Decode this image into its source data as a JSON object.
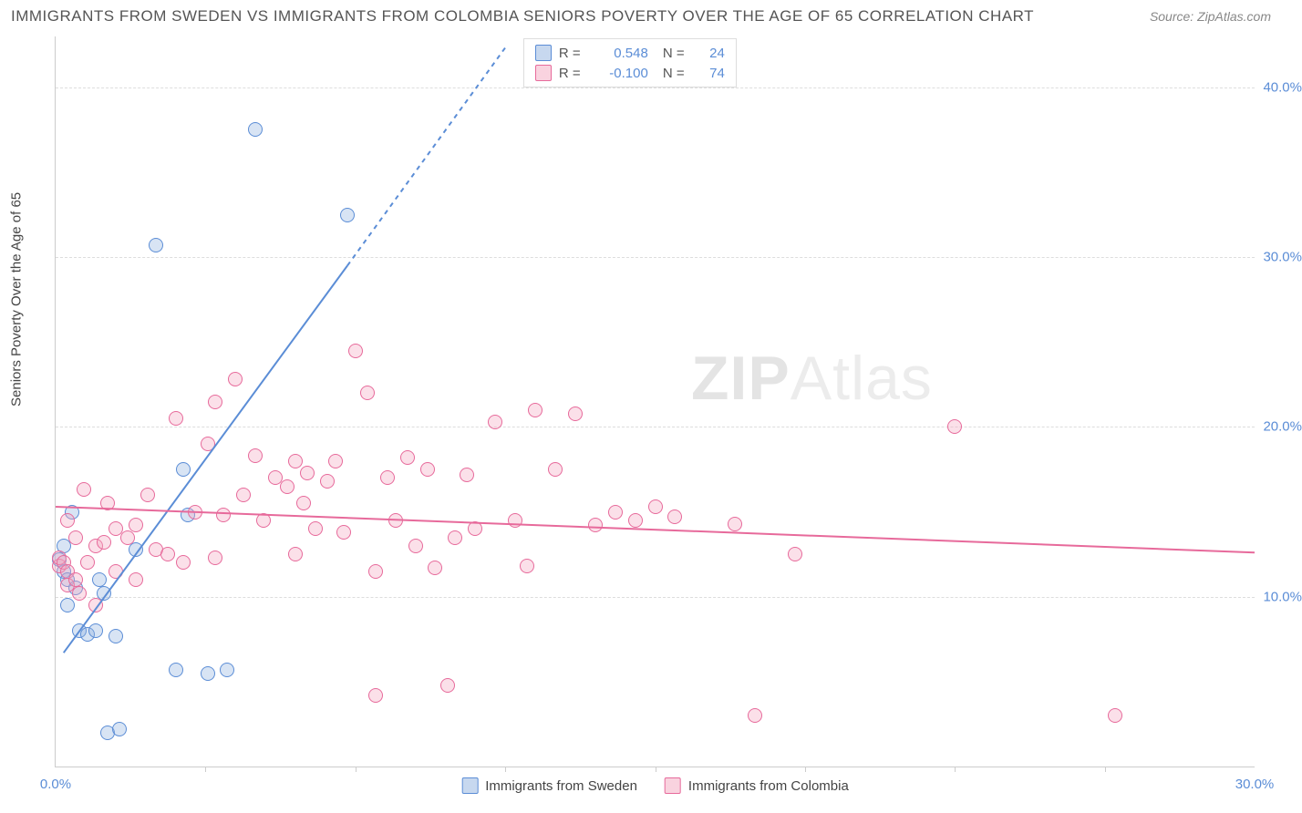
{
  "title": "IMMIGRANTS FROM SWEDEN VS IMMIGRANTS FROM COLOMBIA SENIORS POVERTY OVER THE AGE OF 65 CORRELATION CHART",
  "source": "Source: ZipAtlas.com",
  "y_axis_label": "Seniors Poverty Over the Age of 65",
  "watermark_prefix": "ZIP",
  "watermark_suffix": "Atlas",
  "chart": {
    "type": "scatter",
    "xlim": [
      0,
      30
    ],
    "ylim": [
      0,
      43
    ],
    "x_ticks": [
      0,
      30
    ],
    "x_tick_labels": [
      "0.0%",
      "30.0%"
    ],
    "x_minor_ticks": [
      3.75,
      7.5,
      11.25,
      15,
      18.75,
      22.5,
      26.25
    ],
    "y_ticks": [
      10,
      20,
      30,
      40
    ],
    "y_tick_labels": [
      "10.0%",
      "20.0%",
      "30.0%",
      "40.0%"
    ],
    "grid_color": "#dddddd",
    "background_color": "#ffffff",
    "marker_radius": 8
  },
  "series": [
    {
      "name": "Immigrants from Sweden",
      "color": "#5b8dd6",
      "fill": "rgba(144,178,224,0.35)",
      "R": "0.548",
      "N": "24",
      "trend": {
        "x1": 0.2,
        "y1": 6.7,
        "x2": 7.3,
        "y2": 29.5,
        "dash_to_x": 11.3,
        "dash_to_y": 42.5
      },
      "points": [
        [
          0.1,
          12.2
        ],
        [
          0.2,
          11.5
        ],
        [
          0.2,
          13.0
        ],
        [
          0.3,
          9.5
        ],
        [
          0.3,
          11.0
        ],
        [
          0.5,
          10.5
        ],
        [
          0.6,
          8.0
        ],
        [
          0.8,
          7.8
        ],
        [
          1.0,
          8.0
        ],
        [
          1.1,
          11.0
        ],
        [
          1.2,
          10.2
        ],
        [
          1.3,
          2.0
        ],
        [
          1.5,
          7.7
        ],
        [
          1.6,
          2.2
        ],
        [
          2.0,
          12.8
        ],
        [
          2.5,
          30.7
        ],
        [
          3.0,
          5.7
        ],
        [
          3.2,
          17.5
        ],
        [
          3.3,
          14.8
        ],
        [
          3.8,
          5.5
        ],
        [
          4.3,
          5.7
        ],
        [
          5.0,
          37.5
        ],
        [
          7.3,
          32.5
        ],
        [
          0.4,
          15.0
        ]
      ]
    },
    {
      "name": "Immigrants from Colombia",
      "color": "#e76a9b",
      "fill": "rgba(244,167,192,0.35)",
      "R": "-0.100",
      "N": "74",
      "trend": {
        "x1": 0,
        "y1": 15.3,
        "x2": 30,
        "y2": 12.6
      },
      "points": [
        [
          0.1,
          11.8
        ],
        [
          0.1,
          12.3
        ],
        [
          0.2,
          12.0
        ],
        [
          0.3,
          11.5
        ],
        [
          0.3,
          10.7
        ],
        [
          0.5,
          11.0
        ],
        [
          0.5,
          13.5
        ],
        [
          0.7,
          16.3
        ],
        [
          0.8,
          12.0
        ],
        [
          1.0,
          9.5
        ],
        [
          1.0,
          13.0
        ],
        [
          1.2,
          13.2
        ],
        [
          1.5,
          11.5
        ],
        [
          1.5,
          14.0
        ],
        [
          1.8,
          13.5
        ],
        [
          2.0,
          14.2
        ],
        [
          2.0,
          11.0
        ],
        [
          2.3,
          16.0
        ],
        [
          2.5,
          12.8
        ],
        [
          2.8,
          12.5
        ],
        [
          3.0,
          20.5
        ],
        [
          3.2,
          12.0
        ],
        [
          3.5,
          15.0
        ],
        [
          3.8,
          19.0
        ],
        [
          4.0,
          12.3
        ],
        [
          4.0,
          21.5
        ],
        [
          4.5,
          22.8
        ],
        [
          4.7,
          16.0
        ],
        [
          5.0,
          18.3
        ],
        [
          5.2,
          14.5
        ],
        [
          5.5,
          17.0
        ],
        [
          5.8,
          16.5
        ],
        [
          6.0,
          18.0
        ],
        [
          6.0,
          12.5
        ],
        [
          6.3,
          17.3
        ],
        [
          6.5,
          14.0
        ],
        [
          6.8,
          16.8
        ],
        [
          7.0,
          18.0
        ],
        [
          7.2,
          13.8
        ],
        [
          7.5,
          24.5
        ],
        [
          7.8,
          22.0
        ],
        [
          8.0,
          11.5
        ],
        [
          8.0,
          4.2
        ],
        [
          8.3,
          17.0
        ],
        [
          8.5,
          14.5
        ],
        [
          8.8,
          18.2
        ],
        [
          9.0,
          13.0
        ],
        [
          9.3,
          17.5
        ],
        [
          9.5,
          11.7
        ],
        [
          9.8,
          4.8
        ],
        [
          10.0,
          13.5
        ],
        [
          10.3,
          17.2
        ],
        [
          10.5,
          14.0
        ],
        [
          11.0,
          20.3
        ],
        [
          11.5,
          14.5
        ],
        [
          11.8,
          11.8
        ],
        [
          12.0,
          21.0
        ],
        [
          12.5,
          17.5
        ],
        [
          13.0,
          20.8
        ],
        [
          13.5,
          14.2
        ],
        [
          14.0,
          15.0
        ],
        [
          14.5,
          14.5
        ],
        [
          15.0,
          15.3
        ],
        [
          15.5,
          14.7
        ],
        [
          17.0,
          14.3
        ],
        [
          17.5,
          3.0
        ],
        [
          18.5,
          12.5
        ],
        [
          22.5,
          20.0
        ],
        [
          26.5,
          3.0
        ],
        [
          0.3,
          14.5
        ],
        [
          0.6,
          10.2
        ],
        [
          1.3,
          15.5
        ],
        [
          4.2,
          14.8
        ],
        [
          6.2,
          15.5
        ]
      ]
    }
  ],
  "legend_top": {
    "r_label": "R =",
    "n_label": "N ="
  },
  "legend_bottom": [
    "Immigrants from Sweden",
    "Immigrants from Colombia"
  ]
}
